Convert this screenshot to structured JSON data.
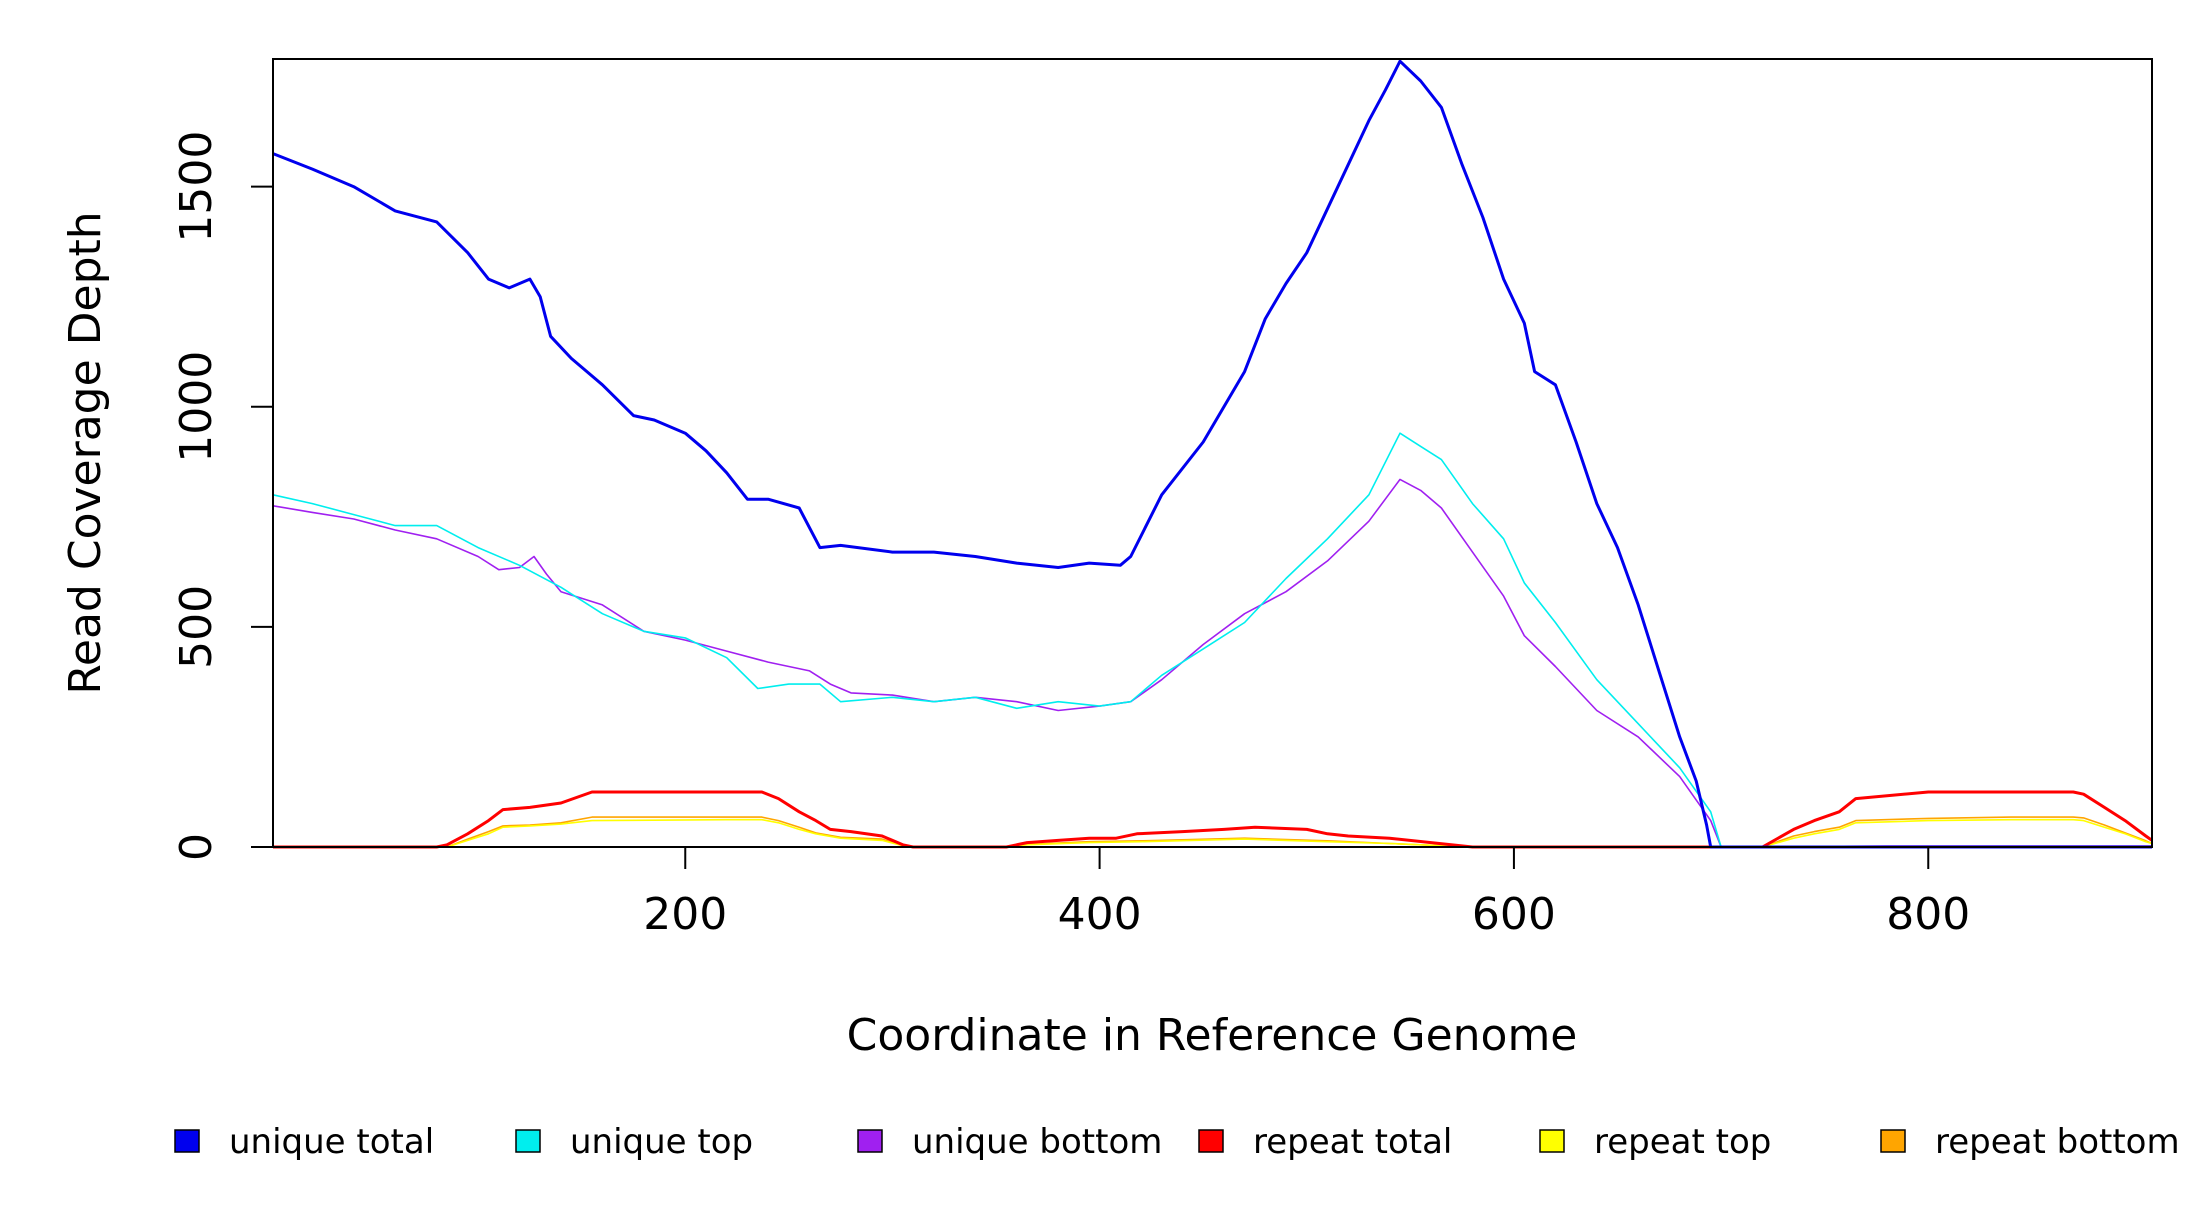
{
  "chart_data": {
    "type": "line",
    "title": "",
    "xlabel": "Coordinate in Reference Genome",
    "ylabel": "Read Coverage Depth",
    "xlim": [
      1,
      908
    ],
    "ylim": [
      0,
      1790
    ],
    "xticks": [
      200,
      400,
      600,
      800
    ],
    "yticks": [
      0,
      500,
      1000,
      1500
    ],
    "grid": false,
    "legend_position": "bottom",
    "series": [
      {
        "name": "unique total",
        "color": "#0000ee",
        "x": [
          1,
          20,
          40,
          60,
          80,
          95,
          105,
          115,
          125,
          130,
          135,
          145,
          160,
          175,
          185,
          200,
          210,
          220,
          230,
          240,
          255,
          265,
          275,
          300,
          320,
          340,
          360,
          380,
          395,
          410,
          415,
          430,
          450,
          470,
          480,
          490,
          500,
          510,
          520,
          530,
          538,
          545,
          555,
          565,
          575,
          585,
          595,
          605,
          610,
          620,
          630,
          640,
          650,
          660,
          670,
          680,
          688,
          693,
          695,
          700,
          720,
          740,
          760,
          780,
          800,
          820,
          840,
          860,
          875,
          885,
          895,
          905,
          908
        ],
        "y": [
          1575,
          1540,
          1500,
          1445,
          1420,
          1350,
          1290,
          1270,
          1290,
          1250,
          1160,
          1110,
          1050,
          980,
          970,
          940,
          900,
          850,
          790,
          790,
          770,
          680,
          685,
          670,
          670,
          660,
          645,
          635,
          645,
          640,
          660,
          800,
          920,
          1080,
          1200,
          1280,
          1350,
          1450,
          1550,
          1650,
          1720,
          1785,
          1740,
          1680,
          1550,
          1430,
          1290,
          1190,
          1080,
          1050,
          920,
          780,
          680,
          550,
          400,
          250,
          150,
          50,
          0,
          0,
          0,
          0,
          0,
          0,
          0,
          0,
          0,
          0,
          0,
          0,
          0,
          0,
          0
        ]
      },
      {
        "name": "unique top",
        "color": "#00eeee",
        "x": [
          1,
          20,
          40,
          60,
          80,
          100,
          120,
          140,
          160,
          180,
          200,
          220,
          235,
          250,
          265,
          275,
          300,
          320,
          340,
          360,
          380,
          400,
          415,
          430,
          450,
          470,
          490,
          510,
          530,
          545,
          555,
          565,
          580,
          595,
          605,
          620,
          640,
          660,
          680,
          695,
          700,
          908
        ],
        "y": [
          800,
          780,
          755,
          730,
          730,
          680,
          640,
          590,
          530,
          490,
          475,
          430,
          360,
          370,
          370,
          330,
          340,
          330,
          340,
          315,
          330,
          320,
          330,
          390,
          450,
          510,
          610,
          700,
          800,
          940,
          910,
          880,
          780,
          700,
          600,
          510,
          380,
          280,
          180,
          80,
          0,
          0
        ]
      },
      {
        "name": "unique bottom",
        "color": "#a020f0",
        "x": [
          1,
          20,
          40,
          60,
          80,
          100,
          110,
          120,
          127,
          133,
          140,
          160,
          180,
          200,
          220,
          240,
          260,
          270,
          280,
          300,
          320,
          340,
          360,
          380,
          400,
          415,
          430,
          450,
          470,
          490,
          510,
          530,
          545,
          555,
          565,
          580,
          595,
          605,
          620,
          640,
          660,
          680,
          695,
          700,
          780,
          908
        ],
        "y": [
          775,
          760,
          745,
          720,
          700,
          660,
          630,
          635,
          660,
          620,
          580,
          550,
          490,
          470,
          445,
          420,
          400,
          370,
          350,
          345,
          330,
          340,
          330,
          310,
          320,
          330,
          380,
          460,
          530,
          580,
          650,
          740,
          835,
          810,
          770,
          670,
          570,
          480,
          410,
          310,
          250,
          160,
          60,
          0,
          2,
          2
        ]
      },
      {
        "name": "repeat total",
        "color": "#ff0000",
        "x": [
          1,
          80,
          85,
          95,
          105,
          112,
          125,
          140,
          155,
          220,
          237,
          245,
          255,
          263,
          270,
          280,
          295,
          305,
          310,
          355,
          365,
          380,
          395,
          408,
          418,
          440,
          460,
          475,
          500,
          510,
          520,
          540,
          560,
          580,
          720,
          735,
          745,
          757,
          765,
          800,
          840,
          870,
          875,
          885,
          895,
          905,
          908
        ],
        "y": [
          0,
          0,
          5,
          30,
          60,
          85,
          90,
          100,
          125,
          125,
          125,
          110,
          80,
          60,
          40,
          35,
          25,
          5,
          0,
          0,
          10,
          15,
          20,
          20,
          30,
          35,
          40,
          45,
          40,
          30,
          25,
          20,
          10,
          0,
          0,
          40,
          60,
          80,
          110,
          125,
          125,
          125,
          120,
          90,
          60,
          25,
          15
        ]
      },
      {
        "name": "repeat top",
        "color": "#ffff00",
        "x": [
          1,
          85,
          95,
          105,
          112,
          125,
          140,
          155,
          220,
          237,
          245,
          255,
          263,
          275,
          295,
          305,
          310,
          355,
          365,
          395,
          420,
          470,
          510,
          540,
          580,
          720,
          735,
          745,
          757,
          765,
          800,
          840,
          870,
          875,
          885,
          895,
          905,
          908
        ],
        "y": [
          0,
          0,
          15,
          30,
          45,
          48,
          52,
          60,
          62,
          62,
          55,
          40,
          30,
          20,
          15,
          3,
          0,
          0,
          5,
          10,
          12,
          18,
          12,
          8,
          0,
          0,
          20,
          30,
          40,
          55,
          60,
          62,
          62,
          60,
          45,
          30,
          12,
          8
        ]
      },
      {
        "name": "repeat bottom",
        "color": "#ffa500",
        "x": [
          1,
          85,
          95,
          105,
          112,
          125,
          140,
          155,
          220,
          237,
          245,
          255,
          263,
          275,
          295,
          305,
          310,
          355,
          365,
          395,
          420,
          470,
          510,
          540,
          580,
          720,
          735,
          745,
          757,
          765,
          800,
          840,
          870,
          875,
          885,
          895,
          905,
          908
        ],
        "y": [
          0,
          0,
          18,
          35,
          48,
          50,
          55,
          68,
          68,
          68,
          60,
          45,
          32,
          22,
          18,
          3,
          0,
          0,
          6,
          12,
          14,
          20,
          14,
          8,
          0,
          0,
          25,
          35,
          45,
          60,
          65,
          68,
          68,
          66,
          50,
          32,
          14,
          8
        ]
      }
    ]
  }
}
